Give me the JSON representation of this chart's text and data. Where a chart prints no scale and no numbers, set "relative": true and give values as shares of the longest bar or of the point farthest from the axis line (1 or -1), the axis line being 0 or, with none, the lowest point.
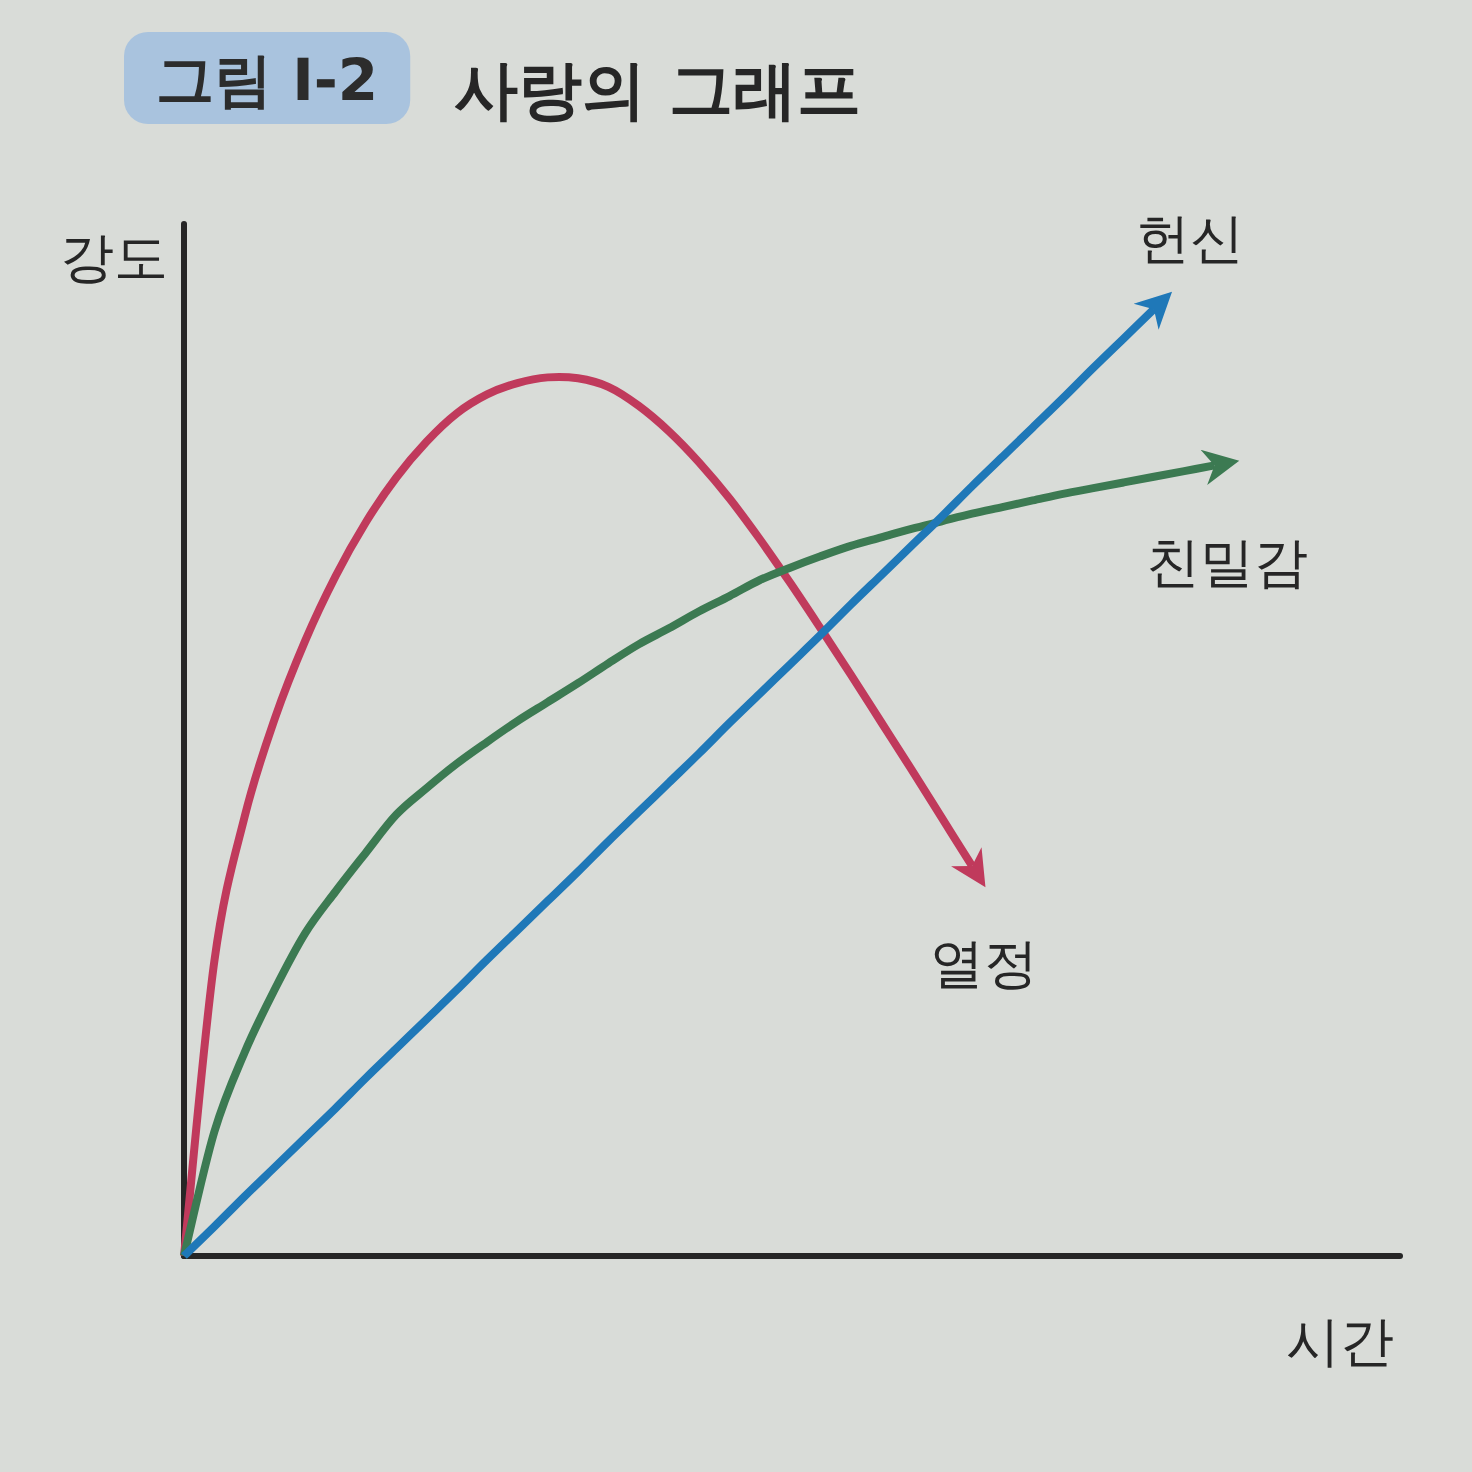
{
  "chart_data": {
    "type": "line",
    "title": "사랑의 그래프",
    "xlabel": "시간",
    "ylabel": "강도",
    "annotations": [
      "그림 I-2"
    ],
    "relative": true,
    "line_style": "solid",
    "categories": [
      null,
      null,
      null,
      null,
      null,
      null,
      null,
      null,
      null,
      null,
      null,
      null,
      null,
      null,
      null,
      null,
      null,
      null,
      null,
      null,
      null,
      null,
      null,
      null,
      null,
      null,
      null,
      null,
      null,
      null,
      null,
      null,
      null,
      null,
      null
    ],
    "series": [
      {
        "name": "열정",
        "color": "#c03a5c",
        "values": [
          0,
          0.311,
          0.464,
          0.568,
          0.65,
          0.718,
          0.775,
          0.822,
          0.86,
          0.89,
          0.91,
          0.922,
          0.928,
          0.927,
          0.918,
          0.898,
          0.871,
          0.838,
          0.8,
          0.757,
          0.711,
          0.663,
          0.614,
          0.564,
          0.514,
          0.463,
          0.412,
          null,
          null,
          null,
          null,
          null,
          null,
          null,
          null
        ]
      },
      {
        "name": "친밀감",
        "color": "#3c7a52",
        "values": [
          0,
          0.131,
          0.215,
          0.282,
          0.341,
          0.385,
          0.426,
          0.466,
          0.494,
          0.52,
          0.543,
          0.565,
          0.585,
          0.605,
          0.626,
          0.646,
          0.663,
          0.681,
          0.697,
          0.714,
          0.727,
          0.739,
          0.75,
          0.759,
          0.768,
          0.776,
          0.784,
          0.791,
          0.798,
          0.805,
          0.811,
          0.817,
          0.823,
          0.829,
          0.835
        ]
      },
      {
        "name": "헌신",
        "color": "#1f78b8",
        "values": [
          0,
          0.031,
          0.063,
          0.094,
          0.125,
          0.156,
          0.188,
          0.219,
          0.25,
          0.281,
          0.313,
          0.344,
          0.375,
          0.406,
          0.438,
          0.469,
          0.5,
          0.531,
          0.563,
          0.594,
          0.625,
          0.656,
          0.688,
          0.719,
          0.75,
          0.781,
          0.813,
          0.844,
          0.875,
          0.906,
          0.938,
          0.969,
          1,
          null,
          null
        ]
      }
    ]
  }
}
